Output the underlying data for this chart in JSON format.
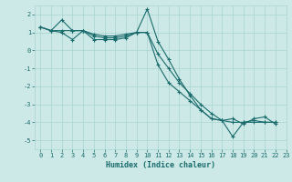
{
  "xlabel": "Humidex (Indice chaleur)",
  "xlim": [
    -0.5,
    23
  ],
  "ylim": [
    -5.5,
    2.5
  ],
  "yticks": [
    -5,
    -4,
    -3,
    -2,
    -1,
    0,
    1,
    2
  ],
  "xticks": [
    0,
    1,
    2,
    3,
    4,
    5,
    6,
    7,
    8,
    9,
    10,
    11,
    12,
    13,
    14,
    15,
    16,
    17,
    18,
    19,
    20,
    21,
    22,
    23
  ],
  "bg_color": "#cce9e7",
  "grid_color": "#aad4d1",
  "line_color": "#1a6b6b",
  "series": [
    [
      1.3,
      1.1,
      1.7,
      1.1,
      1.1,
      0.6,
      0.6,
      0.6,
      0.7,
      1.0,
      2.3,
      0.5,
      -0.5,
      -1.6,
      -2.5,
      -3.3,
      -3.8,
      -3.9,
      -3.8,
      -4.1,
      -3.8,
      -3.7,
      -4.1
    ],
    [
      1.3,
      1.1,
      1.1,
      1.1,
      1.1,
      0.8,
      0.7,
      0.7,
      0.8,
      1.0,
      1.0,
      -0.2,
      -1.0,
      -1.8,
      -2.4,
      -3.0,
      -3.5,
      -3.9,
      -4.0,
      -4.0,
      -3.9,
      -4.0,
      -4.0
    ],
    [
      1.3,
      1.1,
      1.0,
      0.6,
      1.1,
      0.9,
      0.8,
      0.8,
      0.9,
      1.0,
      1.0,
      -0.8,
      -1.8,
      -2.3,
      -2.8,
      -3.3,
      -3.8,
      -3.9,
      -4.8,
      -4.0,
      -4.0,
      -4.0,
      -4.0
    ]
  ]
}
